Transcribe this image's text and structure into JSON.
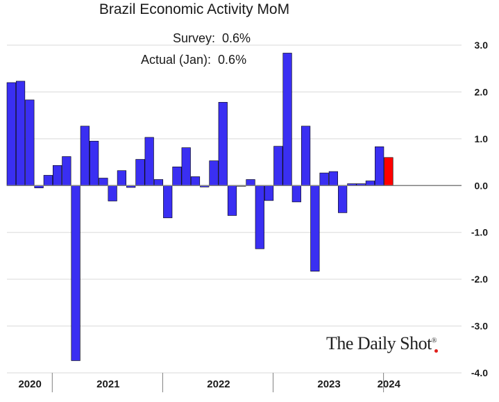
{
  "chart_data": {
    "type": "bar",
    "title": "Brazil Economic Activity MoM",
    "annotations": [
      "Survey:  0.6%",
      "Actual (Jan):  0.6%"
    ],
    "watermark": "The Daily Shot",
    "y_ticks": [
      "3.0",
      "2.0",
      "1.0",
      "0.0",
      "-1.0",
      "-2.0",
      "-3.0",
      "-4.0"
    ],
    "ylim": [
      -4.0,
      3.0
    ],
    "year_labels": [
      "2020",
      "2021",
      "2022",
      "2023",
      "2024"
    ],
    "year_bar_counts": [
      5,
      12,
      12,
      12,
      1
    ],
    "colors": {
      "bar": "#3a2ff2",
      "highlight": "#ff0000",
      "grid": "#d9d9d9",
      "zero": "#7f7f7f"
    },
    "series": [
      {
        "values": [
          2.2,
          2.23,
          1.83,
          -0.05,
          0.22,
          0.43,
          0.62,
          -3.74,
          1.27,
          0.95,
          0.16,
          -0.33,
          0.32,
          -0.04,
          0.56,
          1.03,
          0.13,
          -0.69,
          0.4,
          0.81,
          0.19,
          -0.03,
          0.53,
          1.78,
          -0.64,
          0.0,
          0.13,
          -1.35,
          -0.32,
          0.84,
          2.83,
          -0.35,
          1.27,
          -1.83,
          0.27,
          0.3,
          -0.58,
          0.04,
          0.04,
          0.1,
          0.83,
          0.6
        ]
      }
    ],
    "highlight_index": 41
  }
}
